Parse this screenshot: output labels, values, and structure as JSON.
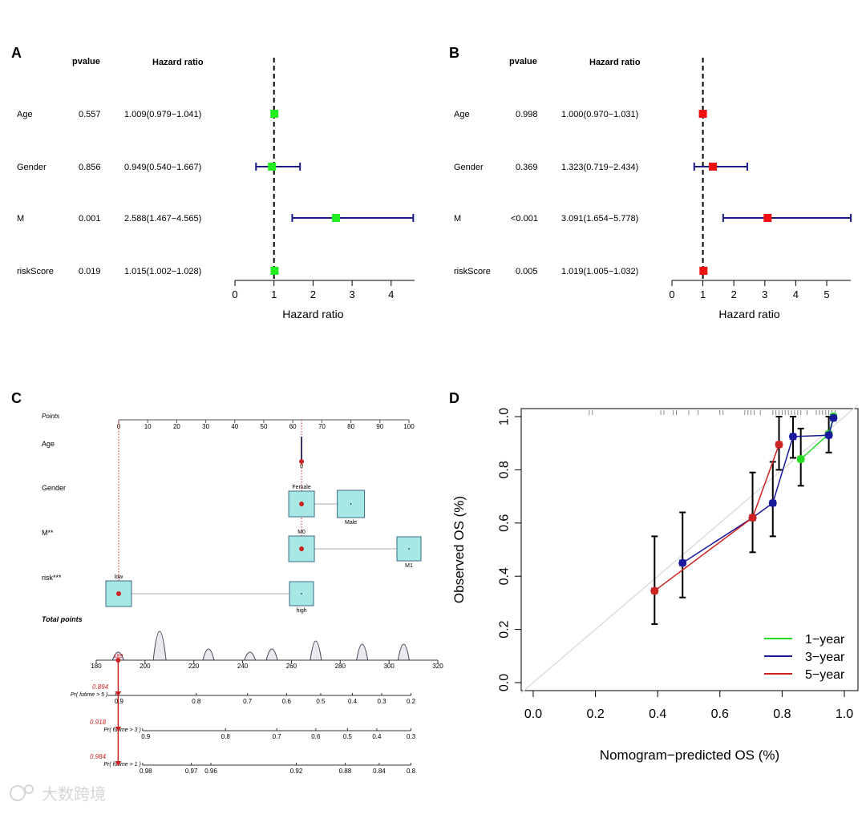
{
  "chart_data": [
    {
      "panel": "A",
      "type": "forest",
      "col_headers": {
        "pvalue": "pvalue",
        "hr": "Hazard ratio"
      },
      "xlabel": "Hazard ratio",
      "xticks": [
        0,
        1,
        2,
        3,
        4
      ],
      "xlim": [
        0,
        4.6
      ],
      "ref": 1,
      "marker_color": "#22ee22",
      "ci_color": "#1a1a8c",
      "rows": [
        {
          "label": "Age",
          "pvalue": "0.557",
          "hr_text": "1.009(0.979−1.041)",
          "hr": 1.009,
          "lo": 0.979,
          "hi": 1.041
        },
        {
          "label": "Gender",
          "pvalue": "0.856",
          "hr_text": "0.949(0.540−1.667)",
          "hr": 0.949,
          "lo": 0.54,
          "hi": 1.667
        },
        {
          "label": "M",
          "pvalue": "0.001",
          "hr_text": "2.588(1.467−4.565)",
          "hr": 2.588,
          "lo": 1.467,
          "hi": 4.565
        },
        {
          "label": "riskScore",
          "pvalue": "0.019",
          "hr_text": "1.015(1.002−1.028)",
          "hr": 1.015,
          "lo": 1.002,
          "hi": 1.028
        }
      ]
    },
    {
      "panel": "B",
      "type": "forest",
      "col_headers": {
        "pvalue": "pvalue",
        "hr": "Hazard ratio"
      },
      "xlabel": "Hazard ratio",
      "xticks": [
        0,
        1,
        2,
        3,
        4,
        5
      ],
      "xlim": [
        0,
        5.78
      ],
      "ref": 1,
      "marker_color": "#ee1111",
      "ci_color": "#1a1a8c",
      "rows": [
        {
          "label": "Age",
          "pvalue": "0.998",
          "hr_text": "1.000(0.970−1.031)",
          "hr": 1.0,
          "lo": 0.97,
          "hi": 1.031
        },
        {
          "label": "Gender",
          "pvalue": "0.369",
          "hr_text": "1.323(0.719−2.434)",
          "hr": 1.323,
          "lo": 0.719,
          "hi": 2.434
        },
        {
          "label": "M",
          "pvalue": "<0.001",
          "hr_text": "3.091(1.654−5.778)",
          "hr": 3.091,
          "lo": 1.654,
          "hi": 5.778
        },
        {
          "label": "riskScore",
          "pvalue": "0.005",
          "hr_text": "1.019(1.005−1.032)",
          "hr": 1.019,
          "lo": 1.005,
          "hi": 1.032
        }
      ]
    },
    {
      "panel": "C",
      "type": "nomogram",
      "points_label": "Points",
      "points_ticks": [
        0,
        10,
        20,
        30,
        40,
        50,
        60,
        70,
        80,
        90,
        100
      ],
      "variables": [
        {
          "label": "Age",
          "levels": [
            {
              "name": "0",
              "points": 63
            }
          ]
        },
        {
          "label": "Gender",
          "levels": [
            {
              "name": "Female",
              "points": 63
            },
            {
              "name": "Male",
              "points": 80
            }
          ]
        },
        {
          "label": "M**",
          "levels": [
            {
              "name": "M0",
              "points": 63
            },
            {
              "name": "M1",
              "points": 100
            }
          ]
        },
        {
          "label": "risk***",
          "levels": [
            {
              "name": "low",
              "points": 0
            },
            {
              "name": "high",
              "points": 63
            }
          ]
        }
      ],
      "selected": {
        "Age": 63,
        "Gender": 63,
        "M": 63,
        "risk": 0
      },
      "total_label": "Total points",
      "total_ticks": [
        180,
        200,
        220,
        240,
        260,
        280,
        300,
        320
      ],
      "total_value": 189,
      "total_value_text": "189",
      "density_peaks": [
        189,
        206,
        226,
        243,
        252,
        270,
        289,
        306
      ],
      "prob_axes": [
        {
          "label": "Pr( futime > 5 )",
          "value_text": "0.894",
          "ticks": [
            "0.9",
            "0.8",
            "0.7",
            "0.6",
            "0.5",
            "0.4",
            "0.3",
            "0.2"
          ],
          "tick_total": [
            188,
            221,
            242,
            258,
            272,
            285,
            297,
            309
          ]
        },
        {
          "label": "Pr( futime > 3 )",
          "value_text": "0.918",
          "ticks": [
            "0.9",
            "0.8",
            "0.7",
            "0.6",
            "0.5",
            "0.4",
            "0.3"
          ],
          "tick_total": [
            199,
            233,
            254,
            270,
            283,
            295,
            309
          ]
        },
        {
          "label": "Pr( futime > 1 )",
          "value_text": "0.984",
          "ticks": [
            "0.98",
            "0.97",
            "0.96",
            "0.92",
            "0.88",
            "0.84",
            "0.8"
          ],
          "tick_total": [
            199,
            219,
            227,
            262,
            282,
            296,
            309
          ]
        }
      ],
      "highlight_color": "#cc2222",
      "box_color": "#a8e8e4"
    },
    {
      "panel": "D",
      "type": "line",
      "xlabel": "Nomogram−predicted OS (%)",
      "ylabel": "Observed OS (%)",
      "xlim": [
        -0.03,
        1.03
      ],
      "ylim": [
        -0.03,
        1.03
      ],
      "xticks": [
        "0.0",
        "0.2",
        "0.4",
        "0.6",
        "0.8",
        "1.0"
      ],
      "yticks": [
        "0.0",
        "0.2",
        "0.4",
        "0.6",
        "0.8",
        "1.0"
      ],
      "legend_position": "bottom-right",
      "series": [
        {
          "name": "1−year",
          "color": "#22dd22",
          "x": [
            0.86,
            0.95,
            0.965
          ],
          "y": [
            0.84,
            0.935,
            1.0
          ]
        },
        {
          "name": "3−year",
          "color": "#1a1a9c",
          "x": [
            0.48,
            0.705,
            0.77,
            0.835,
            0.95,
            0.965
          ],
          "y": [
            0.45,
            0.62,
            0.675,
            0.925,
            0.93,
            0.995
          ]
        },
        {
          "name": "5−year",
          "color": "#cc2222",
          "x": [
            0.39,
            0.705,
            0.79
          ],
          "y": [
            0.345,
            0.62,
            0.895
          ]
        }
      ],
      "error_bars": [
        {
          "x": 0.39,
          "lo": 0.22,
          "hi": 0.55
        },
        {
          "x": 0.48,
          "lo": 0.32,
          "hi": 0.64
        },
        {
          "x": 0.705,
          "lo": 0.49,
          "hi": 0.79
        },
        {
          "x": 0.77,
          "lo": 0.55,
          "hi": 0.83
        },
        {
          "x": 0.79,
          "lo": 0.8,
          "hi": 1.0
        },
        {
          "x": 0.835,
          "lo": 0.845,
          "hi": 1.0
        },
        {
          "x": 0.86,
          "lo": 0.74,
          "hi": 0.955
        },
        {
          "x": 0.95,
          "lo": 0.865,
          "hi": 1.0
        }
      ],
      "rug": [
        0.18,
        0.19,
        0.41,
        0.42,
        0.45,
        0.46,
        0.5,
        0.53,
        0.6,
        0.61,
        0.68,
        0.69,
        0.7,
        0.71,
        0.73,
        0.77,
        0.78,
        0.79,
        0.8,
        0.81,
        0.82,
        0.83,
        0.84,
        0.85,
        0.86,
        0.88,
        0.91,
        0.92,
        0.93,
        0.94,
        0.95,
        0.96,
        0.97
      ]
    }
  ],
  "panel_labels": [
    "A",
    "B",
    "C",
    "D"
  ],
  "watermark": "大数跨境"
}
